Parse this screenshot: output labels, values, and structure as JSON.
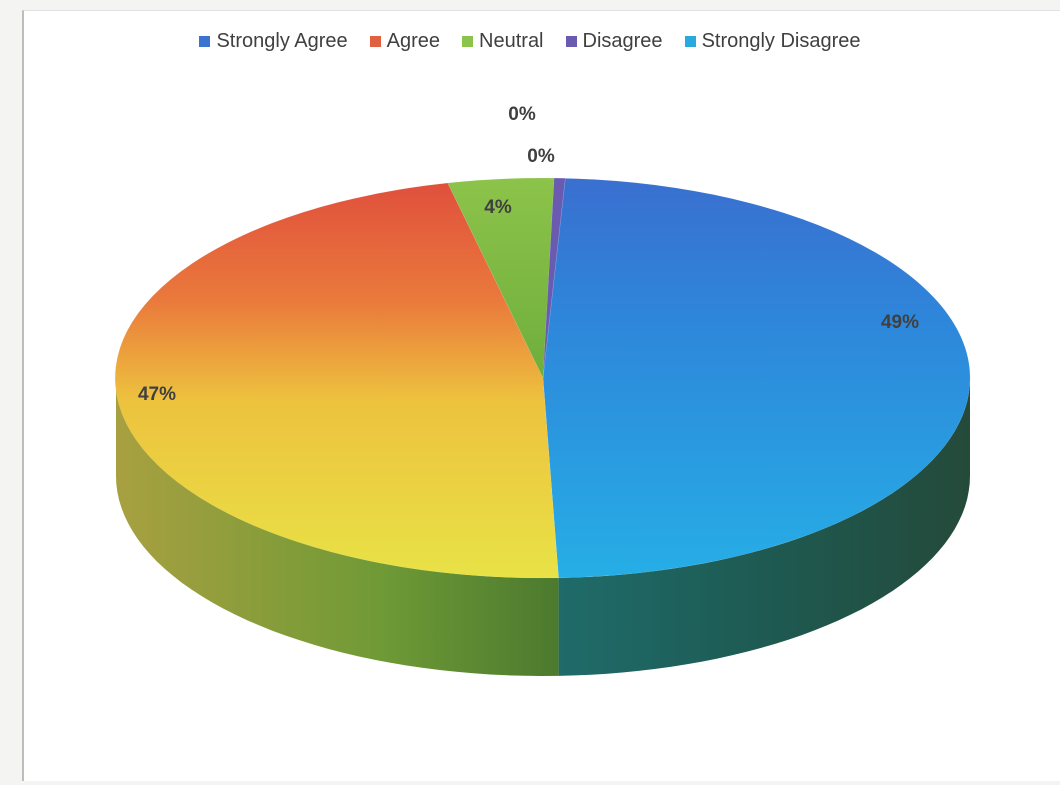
{
  "chart_data": {
    "type": "pie",
    "style": "3d",
    "categories": [
      "Strongly Agree",
      "Agree",
      "Neutral",
      "Disagree",
      "Strongly Disagree"
    ],
    "values": [
      49,
      47,
      4,
      0,
      0
    ],
    "data_labels": [
      "49%",
      "47%",
      "4%",
      "0%",
      "0%"
    ],
    "colors": [
      "#3b74d0",
      "#e06040",
      "#8cc34a",
      "#6a5bb0",
      "#2aa8e0"
    ],
    "legend_position": "top"
  }
}
